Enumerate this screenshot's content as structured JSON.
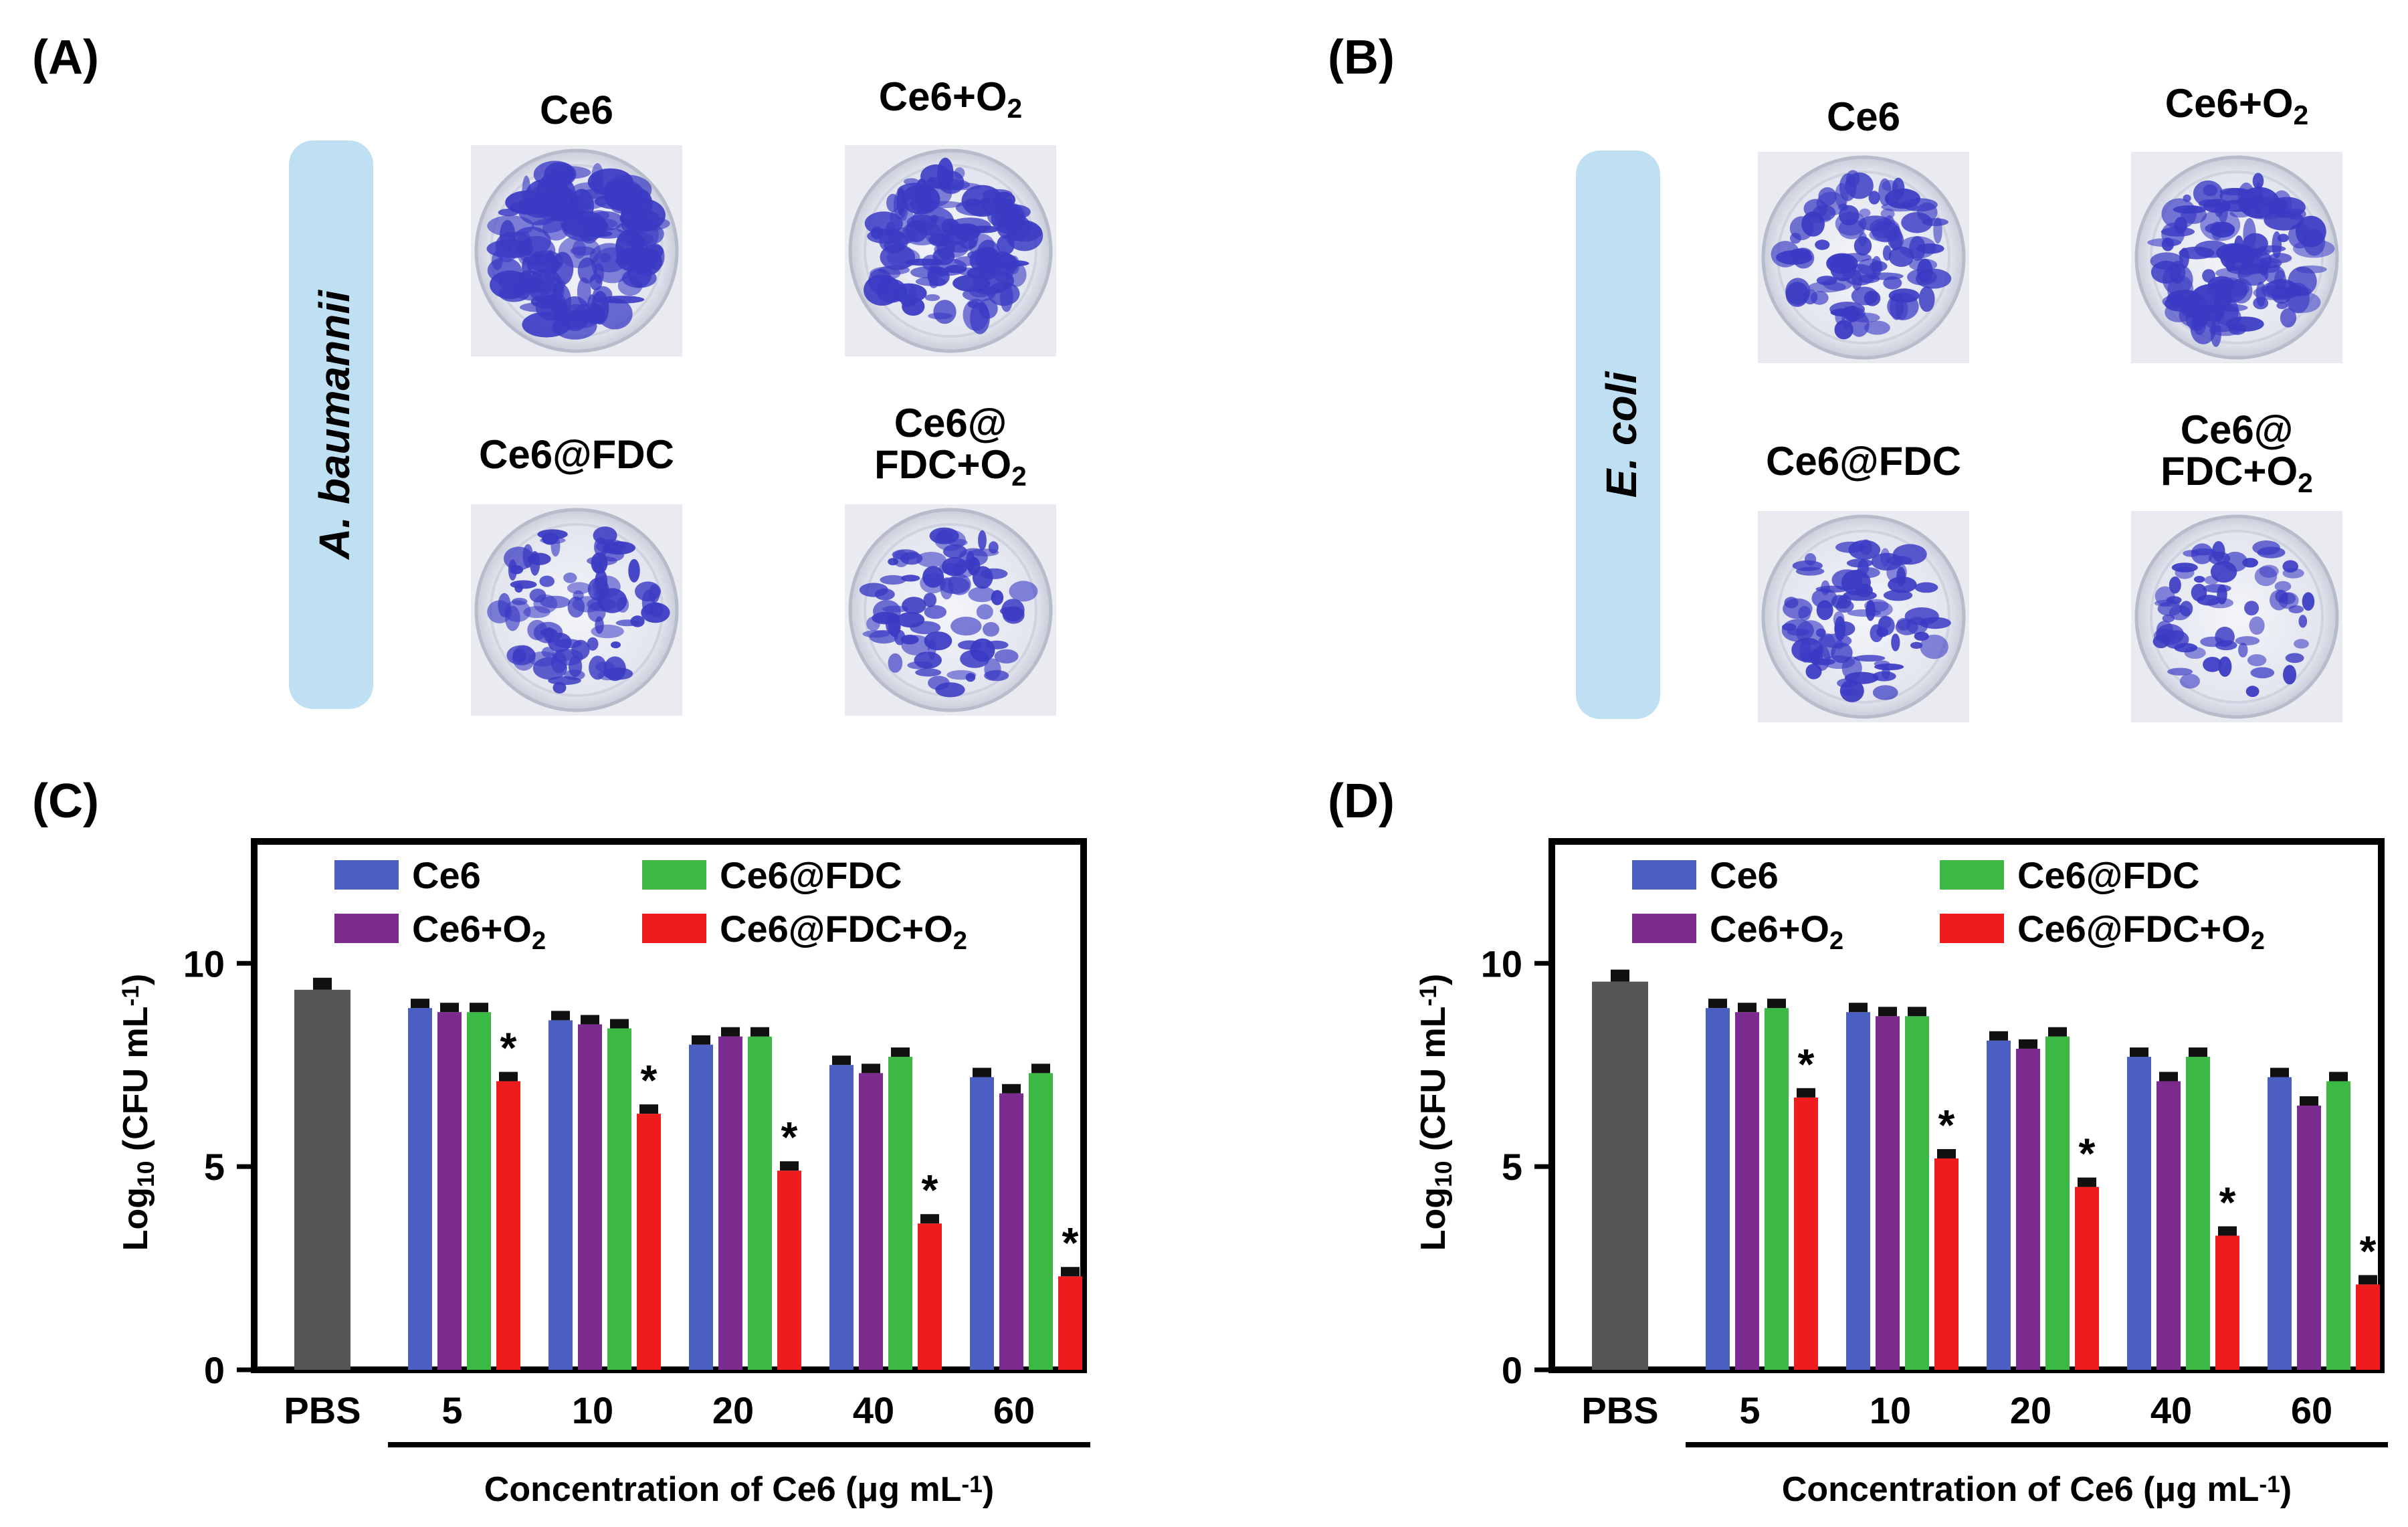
{
  "panels": {
    "a": {
      "label": "(A)",
      "organism": "A. baumannii",
      "plates": [
        {
          "title": "Ce6"
        },
        {
          "title": "Ce6+O",
          "sub": "2"
        },
        {
          "title": "Ce6@FDC"
        },
        {
          "title": "Ce6@",
          "title2": "FDC+O",
          "sub": "2"
        }
      ]
    },
    "b": {
      "label": "(B)",
      "organism": "E. coli",
      "plates": [
        {
          "title": "Ce6"
        },
        {
          "title": "Ce6+O",
          "sub": "2"
        },
        {
          "title": "Ce6@FDC"
        },
        {
          "title": "Ce6@",
          "title2": "FDC+O",
          "sub": "2"
        }
      ]
    },
    "c": {
      "label": "(C)"
    },
    "d": {
      "label": "(D)"
    }
  },
  "colors": {
    "pbs": "#555555",
    "ce6": "#4a5fc1",
    "ce6_o2": "#7b2a8e",
    "ce6_fdc": "#3cb944",
    "ce6_fdc_o2": "#ee1c1c",
    "organism_box": "#bfe0f3",
    "plate_bg": "#e9ebf1",
    "stain": "#3a3ac4"
  },
  "chart_data": [
    {
      "type": "bar",
      "panel": "C",
      "ylabel_main": "Log",
      "ylabel_sub": "10",
      "ylabel_rest": " (CFU mL",
      "ylabel_sup": "-1",
      "ylabel_end": ")",
      "xlabel_main": "Concentration of Ce6 (μg mL",
      "xlabel_sup": "-1",
      "xlabel_end": ")",
      "ylim": [
        0,
        13
      ],
      "yticks": [
        "0",
        "5",
        "10"
      ],
      "control": {
        "label": "PBS",
        "value": 9.35
      },
      "categories": [
        "5",
        "10",
        "20",
        "40",
        "60"
      ],
      "series": [
        {
          "name": "Ce6",
          "values": [
            8.9,
            8.6,
            8.0,
            7.5,
            7.2
          ]
        },
        {
          "name": "Ce6+O",
          "name_sub": "2",
          "values": [
            8.8,
            8.5,
            8.2,
            7.3,
            6.8
          ]
        },
        {
          "name": "Ce6@FDC",
          "values": [
            8.8,
            8.4,
            8.2,
            7.7,
            7.3
          ]
        },
        {
          "name": "Ce6@FDC+O",
          "name_sub": "2",
          "values": [
            7.1,
            6.3,
            4.9,
            3.6,
            2.3
          ]
        }
      ],
      "significance": [
        "*",
        "*",
        "*",
        "*",
        "*"
      ],
      "legend": "top, two columns"
    },
    {
      "type": "bar",
      "panel": "D",
      "ylabel_main": "Log",
      "ylabel_sub": "10",
      "ylabel_rest": " (CFU mL",
      "ylabel_sup": "-1",
      "ylabel_end": ")",
      "xlabel_main": "Concentration of Ce6 (μg mL",
      "xlabel_sup": "-1",
      "xlabel_end": ")",
      "ylim": [
        0,
        13
      ],
      "yticks": [
        "0",
        "5",
        "10"
      ],
      "control": {
        "label": "PBS",
        "value": 9.55
      },
      "categories": [
        "5",
        "10",
        "20",
        "40",
        "60"
      ],
      "series": [
        {
          "name": "Ce6",
          "values": [
            8.9,
            8.8,
            8.1,
            7.7,
            7.2
          ]
        },
        {
          "name": "Ce6+O",
          "name_sub": "2",
          "values": [
            8.8,
            8.7,
            7.9,
            7.1,
            6.5
          ]
        },
        {
          "name": "Ce6@FDC",
          "values": [
            8.9,
            8.7,
            8.2,
            7.7,
            7.1
          ]
        },
        {
          "name": "Ce6@FDC+O",
          "name_sub": "2",
          "values": [
            6.7,
            5.2,
            4.5,
            3.3,
            2.1
          ]
        }
      ],
      "significance": [
        "*",
        "*",
        "*",
        "*",
        "*"
      ],
      "legend": "top, two columns"
    }
  ]
}
